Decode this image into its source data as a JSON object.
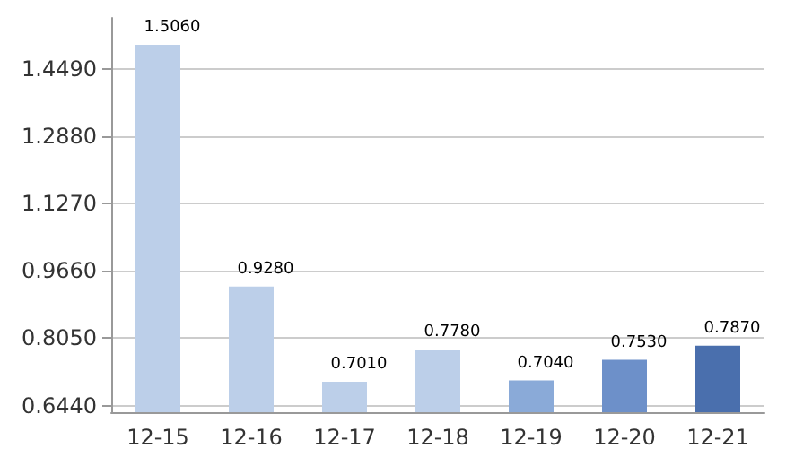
{
  "chart_data": {
    "type": "bar",
    "categories": [
      "12-15",
      "12-16",
      "12-17",
      "12-18",
      "12-19",
      "12-20",
      "12-21"
    ],
    "values": [
      1.506,
      0.928,
      0.701,
      0.778,
      0.704,
      0.753,
      0.787
    ],
    "value_labels": [
      "1.5060",
      "0.9280",
      "0.7010",
      "0.7780",
      "0.7040",
      "0.7530",
      "0.7870"
    ],
    "colors": [
      "#bccfe9",
      "#bccfe9",
      "#bccfe9",
      "#bccfe9",
      "#8aaad8",
      "#6d90c9",
      "#4a6fad"
    ],
    "ylim": [
      0.628,
      1.57
    ],
    "yticks": [
      {
        "value": 0.644,
        "label": "0.6440"
      },
      {
        "value": 0.805,
        "label": "0.8050"
      },
      {
        "value": 0.966,
        "label": "0.9660"
      },
      {
        "value": 1.127,
        "label": "1.1270"
      },
      {
        "value": 1.288,
        "label": "1.2880"
      },
      {
        "value": 1.449,
        "label": "1.4490"
      }
    ],
    "grid": "y"
  }
}
